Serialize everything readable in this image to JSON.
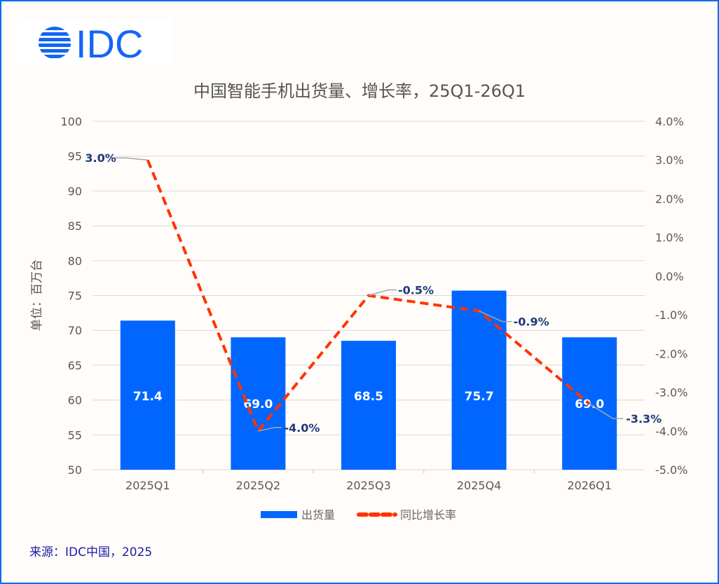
{
  "logo": {
    "text": "IDC",
    "color": "#1565f5"
  },
  "source": "来源：IDC中国，2025",
  "chart_data": {
    "type": "bar+line",
    "title": "中国智能手机出货量、增长率，25Q1-26Q1",
    "ylabel": "单位：百万台",
    "categories": [
      "2025Q1",
      "2025Q2",
      "2025Q3",
      "2025Q4",
      "2026Q1"
    ],
    "y_left": {
      "range": [
        50,
        100
      ],
      "ticks": [
        50,
        55,
        60,
        65,
        70,
        75,
        80,
        85,
        90,
        95,
        100
      ]
    },
    "y_right": {
      "range": [
        -5.0,
        4.0
      ],
      "ticks": [
        "-5.0%",
        "-4.0%",
        "-3.0%",
        "-2.0%",
        "-1.0%",
        "0.0%",
        "1.0%",
        "2.0%",
        "3.0%",
        "4.0%"
      ]
    },
    "grid": true,
    "legend_position": "bottom",
    "series": [
      {
        "name": "出货量",
        "type": "bar",
        "axis": "left",
        "color": "#0066ff",
        "values": [
          71.4,
          69.0,
          68.5,
          75.7,
          69.0
        ],
        "labels": [
          "71.4",
          "69.0",
          "68.5",
          "75.7",
          "69.0"
        ]
      },
      {
        "name": "同比增长率",
        "type": "line",
        "style": "dashed",
        "axis": "right",
        "color": "#ff3300",
        "values": [
          3.0,
          -4.0,
          -0.5,
          -0.9,
          -3.3
        ],
        "labels": [
          "3.0%",
          "-4.0%",
          "-0.5%",
          "-0.9%",
          "-3.3%"
        ]
      }
    ]
  }
}
